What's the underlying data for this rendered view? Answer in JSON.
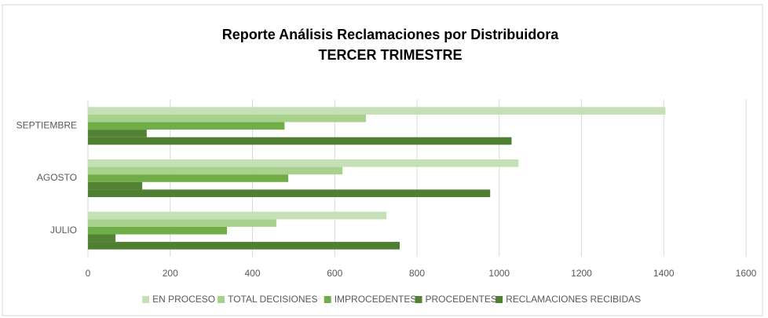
{
  "chart_data": {
    "type": "hbar",
    "title": "Reporte Análisis Reclamaciones por Distribuidora",
    "subtitle": "TERCER TRIMESTRE",
    "categories": [
      "JULIO",
      "AGOSTO",
      "SEPTIEMBRE"
    ],
    "series": [
      {
        "name": "EN PROCESO",
        "color": "#c5e0b4",
        "values": [
          726,
          1047,
          1404
        ]
      },
      {
        "name": "TOTAL DECISIONES",
        "color": "#a9d18e",
        "values": [
          458,
          619,
          676
        ]
      },
      {
        "name": "IMPROCEDENTES",
        "color": "#70ad47",
        "values": [
          338,
          487,
          478
        ]
      },
      {
        "name": "PROCEDENTES",
        "color": "#548235",
        "values": [
          67,
          132,
          143
        ]
      },
      {
        "name": "RECLAMACIONES RECIBIDAS",
        "color": "#4f7f30",
        "values": [
          758,
          978,
          1030
        ]
      }
    ],
    "xlim": [
      0,
      1600
    ],
    "xticks": [
      0,
      200,
      400,
      600,
      800,
      1000,
      1200,
      1400,
      1600
    ],
    "grid": true,
    "legend": "bottom"
  }
}
